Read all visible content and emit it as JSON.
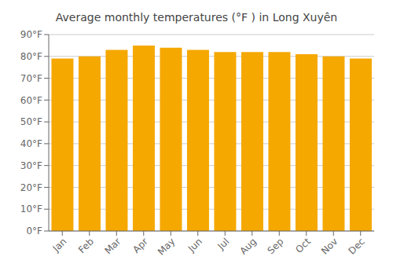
{
  "chart_data": {
    "type": "bar",
    "title": "Average monthly temperatures (°F ) in Long Xuyên",
    "categories": [
      "Jan",
      "Feb",
      "Mar",
      "Apr",
      "May",
      "Jun",
      "Jul",
      "Aug",
      "Sep",
      "Oct",
      "Nov",
      "Dec"
    ],
    "values": [
      79,
      80,
      83,
      85,
      84,
      83,
      82,
      82,
      82,
      81,
      80,
      79
    ],
    "color": "#F5A800",
    "ylim": [
      0,
      90
    ],
    "yticks": [
      {
        "value": 0,
        "label": "0°F"
      },
      {
        "value": 10,
        "label": "10°F"
      },
      {
        "value": 20,
        "label": "20°F"
      },
      {
        "value": 30,
        "label": "30°F"
      },
      {
        "value": 40,
        "label": "40°F"
      },
      {
        "value": 50,
        "label": "50°F"
      },
      {
        "value": 60,
        "label": "60°F"
      },
      {
        "value": 70,
        "label": "70°F"
      },
      {
        "value": 80,
        "label": "80°F"
      },
      {
        "value": 90,
        "label": "90°F"
      }
    ],
    "grid": true
  }
}
